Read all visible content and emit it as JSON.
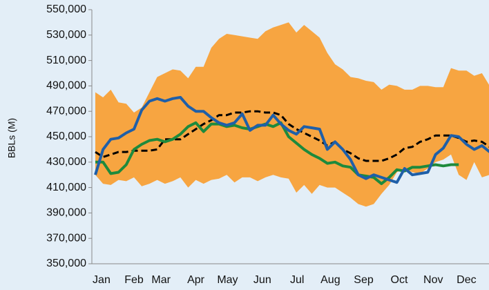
{
  "chart_data": {
    "type": "line",
    "y_label": "BBLs (M)",
    "background": "#e3eef7",
    "x": [
      1,
      2,
      3,
      4,
      5,
      6,
      7,
      8,
      9,
      10,
      11,
      12,
      13,
      14,
      15,
      16,
      17,
      18,
      19,
      20,
      21,
      22,
      23,
      24,
      25,
      26,
      27,
      28,
      29,
      30,
      31,
      32,
      33,
      34,
      35,
      36,
      37,
      38,
      39,
      40,
      41,
      42,
      43,
      44,
      45,
      46,
      47,
      48,
      49,
      50,
      51,
      52
    ],
    "xlim": [
      1,
      52
    ],
    "xticks": [
      {
        "value": 1.8,
        "label": "Jan"
      },
      {
        "value": 6,
        "label": "Feb"
      },
      {
        "value": 9.5,
        "label": "Mar"
      },
      {
        "value": 14,
        "label": "Apr"
      },
      {
        "value": 18.1,
        "label": "May"
      },
      {
        "value": 22.6,
        "label": "Jun"
      },
      {
        "value": 27.1,
        "label": "Jul"
      },
      {
        "value": 31.4,
        "label": "Aug"
      },
      {
        "value": 35.7,
        "label": "Sep"
      },
      {
        "value": 40.3,
        "label": "Oct"
      },
      {
        "value": 44.7,
        "label": "Nov"
      },
      {
        "value": 49,
        "label": "Dec"
      }
    ],
    "ylim": [
      350000,
      550000
    ],
    "yticks": [
      {
        "value": 350000,
        "label": "350,000"
      },
      {
        "value": 370000,
        "label": "370,000"
      },
      {
        "value": 390000,
        "label": "390,000"
      },
      {
        "value": 410000,
        "label": "410,000"
      },
      {
        "value": 430000,
        "label": "430,000"
      },
      {
        "value": 450000,
        "label": "450,000"
      },
      {
        "value": 470000,
        "label": "470,000"
      },
      {
        "value": 490000,
        "label": "490,000"
      },
      {
        "value": 510000,
        "label": "510,000"
      },
      {
        "value": 530000,
        "label": "530,000"
      },
      {
        "value": 550000,
        "label": "550,000"
      }
    ],
    "range": {
      "color": "#f7a541",
      "high": [
        485000,
        481000,
        487000,
        477000,
        476000,
        469000,
        473000,
        485000,
        497000,
        500000,
        503000,
        502000,
        496000,
        505000,
        505000,
        520000,
        527000,
        531000,
        530000,
        529000,
        528000,
        527000,
        533000,
        536000,
        538000,
        540000,
        532000,
        538000,
        533000,
        528000,
        516000,
        507000,
        503000,
        497000,
        496000,
        494000,
        493000,
        487000,
        491000,
        490000,
        487000,
        487000,
        490000,
        490000,
        489000,
        489000,
        504000,
        502000,
        502000,
        498000,
        500000,
        490000
      ],
      "low": [
        420000,
        413000,
        412000,
        416000,
        415000,
        418000,
        411000,
        413000,
        416000,
        413000,
        415000,
        418000,
        410000,
        416000,
        413000,
        416000,
        417000,
        420000,
        414000,
        418000,
        418000,
        415000,
        418000,
        420000,
        418000,
        417000,
        406000,
        412000,
        405000,
        412000,
        410000,
        410000,
        406000,
        402000,
        397000,
        395000,
        397000,
        405000,
        412000,
        422000,
        425000,
        422000,
        421000,
        425000,
        430000,
        432000,
        436000,
        420000,
        416000,
        430000,
        418000,
        420000
      ]
    },
    "series": [
      {
        "color": "#000000",
        "dash": true,
        "values": [
          438000,
          434000,
          436000,
          438000,
          438000,
          439000,
          439000,
          439000,
          440000,
          448000,
          448000,
          448000,
          452000,
          456000,
          460000,
          463000,
          467000,
          467000,
          469000,
          469000,
          470000,
          470000,
          469000,
          469000,
          467000,
          460000,
          456000,
          453000,
          450000,
          447000,
          443000,
          446000,
          440000,
          437000,
          433000,
          431000,
          431000,
          431000,
          433000,
          436000,
          441000,
          442000,
          446000,
          448000,
          451000,
          451000,
          451000,
          449000,
          446000,
          447000,
          446000,
          442000
        ]
      },
      {
        "color": "#1e8a3c",
        "dash": false,
        "values": [
          430000,
          430000,
          421000,
          422000,
          428000,
          440000,
          444000,
          447000,
          448000,
          446000,
          448000,
          452000,
          458000,
          461000,
          454000,
          460000,
          460000,
          458000,
          459000,
          457000,
          456000,
          458000,
          460000,
          458000,
          461000,
          450000,
          445000,
          440000,
          436000,
          433000,
          429000,
          430000,
          427000,
          426000,
          420000,
          419000,
          418000,
          413000,
          418000,
          424000,
          423000,
          426000,
          426000,
          427000,
          428000,
          427000,
          428000,
          428000,
          null,
          null,
          null,
          null
        ]
      },
      {
        "color": "#1f5fa8",
        "dash": false,
        "values": [
          420000,
          440000,
          448000,
          449000,
          453000,
          456000,
          471000,
          478000,
          480000,
          478000,
          480000,
          481000,
          474000,
          470000,
          470000,
          465000,
          461000,
          459000,
          461000,
          468000,
          455000,
          459000,
          459000,
          467000,
          460000,
          455000,
          452000,
          458000,
          457000,
          456000,
          440000,
          446000,
          440000,
          432000,
          420000,
          417000,
          420000,
          418000,
          416000,
          414000,
          425000,
          420000,
          421000,
          422000,
          436000,
          441000,
          451000,
          450000,
          444000,
          440000,
          443000,
          438000
        ]
      }
    ]
  }
}
